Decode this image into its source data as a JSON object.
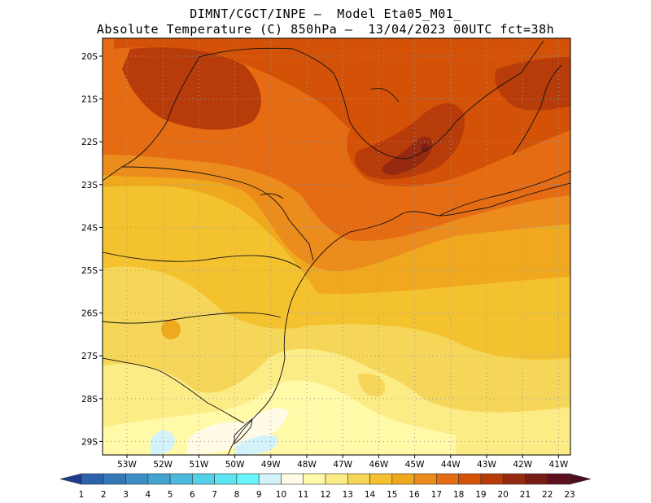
{
  "header": {
    "line1": "DIMNT/CGCT/INPE —  Model Eta05_M01_",
    "line2": "Absolute Temperature (C) 850hPa —  13/04/2023 00UTC fct=38h"
  },
  "axes": {
    "lat_labels": [
      "20S",
      "21S",
      "22S",
      "23S",
      "24S",
      "25S",
      "26S",
      "27S",
      "28S",
      "29S"
    ],
    "lon_labels": [
      "53W",
      "52W",
      "51W",
      "50W",
      "49W",
      "48W",
      "47W",
      "46W",
      "45W",
      "44W",
      "43W",
      "42W",
      "41W"
    ]
  },
  "colorbar": {
    "labels": [
      "1",
      "2",
      "3",
      "4",
      "5",
      "6",
      "7",
      "8",
      "9",
      "10",
      "11",
      "12",
      "13",
      "14",
      "15",
      "16",
      "17",
      "18",
      "19",
      "20",
      "21",
      "22",
      "23"
    ],
    "low_color": "#1e3c8c",
    "high_color": "#4a0f1e",
    "colors": [
      "#244c9c",
      "#2c62ac",
      "#3478b8",
      "#3c8ec4",
      "#44a4d0",
      "#4cbadc",
      "#54d0e8",
      "#5ce4f2",
      "#66f6fc",
      "#d4f2fa",
      "#fffbe6",
      "#fff9a8",
      "#fcec86",
      "#f6d658",
      "#f4c22e",
      "#f0a81e",
      "#ec8c1c",
      "#e66c14",
      "#d45208",
      "#b83c0a",
      "#962a10",
      "#781c16",
      "#5c1020"
    ]
  },
  "map_colors": {
    "t11": "#fffbe6",
    "t12": "#fff9a8",
    "t13": "#fcec86",
    "t14": "#f6d658",
    "t15": "#f4c22e",
    "t16": "#f0a81e",
    "t17": "#ec8c1c",
    "t18": "#e66c14",
    "t19": "#d45208",
    "t20": "#b83c0a",
    "t22": "#781c16",
    "coldspot": "#d4f2fa"
  }
}
